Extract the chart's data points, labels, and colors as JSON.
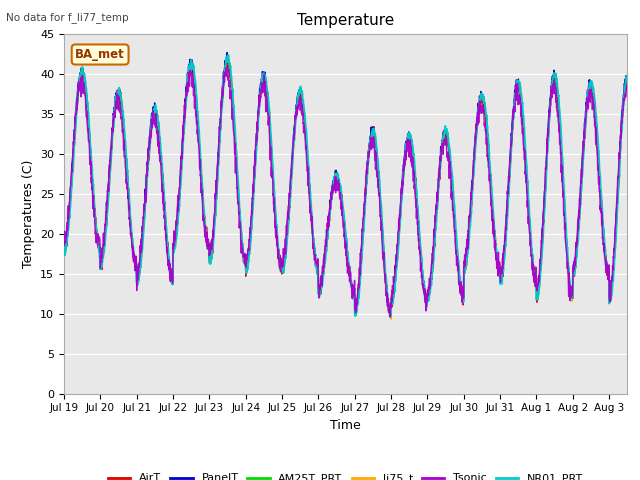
{
  "title": "Temperature",
  "xlabel": "Time",
  "ylabel": "Temperatures (C)",
  "ylim": [
    0,
    45
  ],
  "yticks": [
    0,
    5,
    10,
    15,
    20,
    25,
    30,
    35,
    40,
    45
  ],
  "note": "No data for f_li77_temp",
  "legend_label": "BA_met",
  "fig_facecolor": "#ffffff",
  "plot_facecolor": "#e8e8e8",
  "series": [
    {
      "label": "AirT",
      "color": "#dd0000",
      "lw": 1.0,
      "zorder": 5
    },
    {
      "label": "PanelT",
      "color": "#0000cc",
      "lw": 1.0,
      "zorder": 4
    },
    {
      "label": "AM25T_PRT",
      "color": "#00dd00",
      "lw": 1.0,
      "zorder": 3
    },
    {
      "label": "li75_t",
      "color": "#ffaa00",
      "lw": 1.0,
      "zorder": 2
    },
    {
      "label": "Tsonic",
      "color": "#aa00cc",
      "lw": 1.0,
      "zorder": 7
    },
    {
      "label": "NR01_PRT",
      "color": "#00cccc",
      "lw": 1.5,
      "zorder": 6
    }
  ],
  "day_peaks": [
    40.0,
    37.5,
    35.2,
    41.0,
    41.5,
    39.5,
    37.5,
    27.0,
    32.5,
    32.0,
    32.5,
    37.0,
    38.5,
    39.5,
    38.5,
    39.0
  ],
  "day_troughs": [
    18.0,
    16.0,
    14.0,
    18.0,
    16.5,
    15.5,
    15.5,
    12.5,
    10.0,
    11.5,
    12.0,
    15.5,
    14.0,
    12.0,
    15.0,
    11.5
  ],
  "num_days": 16
}
